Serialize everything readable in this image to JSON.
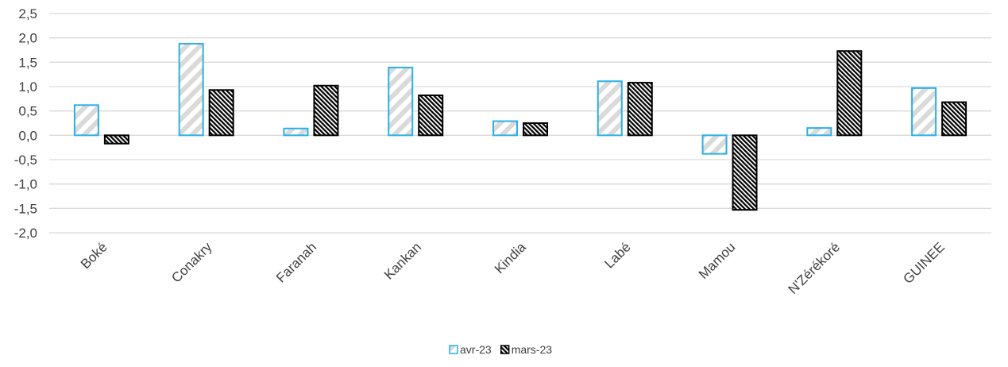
{
  "chart_data": {
    "type": "bar",
    "title": "",
    "xlabel": "",
    "ylabel": "",
    "categories": [
      "Boké",
      "Conakry",
      "Faranah",
      "Kankan",
      "Kindia",
      "Labé",
      "Mamou",
      "N'Zérékoré",
      "GUINEE"
    ],
    "series": [
      {
        "name": "avr-23",
        "values": [
          0.62,
          1.88,
          0.14,
          1.39,
          0.29,
          1.11,
          -0.38,
          0.15,
          0.97
        ],
        "color": "#2ab0e6",
        "fill": "light-diagonal-hatch"
      },
      {
        "name": "mars-23",
        "values": [
          -0.17,
          0.93,
          1.02,
          0.82,
          0.25,
          1.08,
          -1.53,
          1.73,
          0.68
        ],
        "color": "#000000",
        "fill": "dark-diagonal-hatch"
      }
    ],
    "ylim": [
      -2.0,
      2.5
    ],
    "yticks": [
      "2,5",
      "2,0",
      "1,5",
      "1,0",
      "0,5",
      "0,0",
      "-0,5",
      "-1,0",
      "-1,5",
      "-2,0"
    ],
    "grid": true,
    "legend_position": "bottom-center"
  }
}
